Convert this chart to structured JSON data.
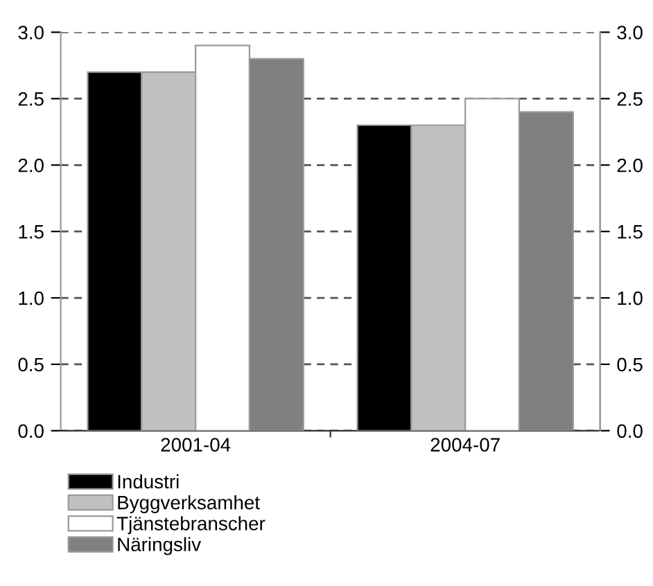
{
  "chart_data": {
    "type": "bar",
    "categories": [
      "2001-04",
      "2004-07"
    ],
    "series": [
      {
        "name": "Industri",
        "color": "#000000",
        "values": [
          2.7,
          2.3
        ]
      },
      {
        "name": "Byggverksamhet",
        "color": "#c0c0c0",
        "values": [
          2.7,
          2.3
        ]
      },
      {
        "name": "Tjänstebranscher",
        "color": "#ffffff",
        "values": [
          2.9,
          2.5
        ]
      },
      {
        "name": "Näringsliv",
        "color": "#808080",
        "values": [
          2.8,
          2.4
        ]
      }
    ],
    "ylim": [
      0,
      3
    ],
    "yticks": [
      {
        "value": 0,
        "label": "0.0"
      },
      {
        "value": 0.5,
        "label": "0.5"
      },
      {
        "value": 1,
        "label": "1.0"
      },
      {
        "value": 1.5,
        "label": "1.5"
      },
      {
        "value": 2,
        "label": "2.0"
      },
      {
        "value": 2.5,
        "label": "2.5"
      },
      {
        "value": 3,
        "label": "3.0"
      }
    ],
    "y2lim": [
      0,
      3
    ],
    "y2ticks": [
      {
        "value": 0,
        "label": "0.0"
      },
      {
        "value": 0.5,
        "label": "0.5"
      },
      {
        "value": 1,
        "label": "1.0"
      },
      {
        "value": 1.5,
        "label": "1.5"
      },
      {
        "value": 2,
        "label": "2.0"
      },
      {
        "value": 2.5,
        "label": "2.5"
      },
      {
        "value": 3,
        "label": "3.0"
      }
    ],
    "grid": "y",
    "legend": "bottom"
  }
}
